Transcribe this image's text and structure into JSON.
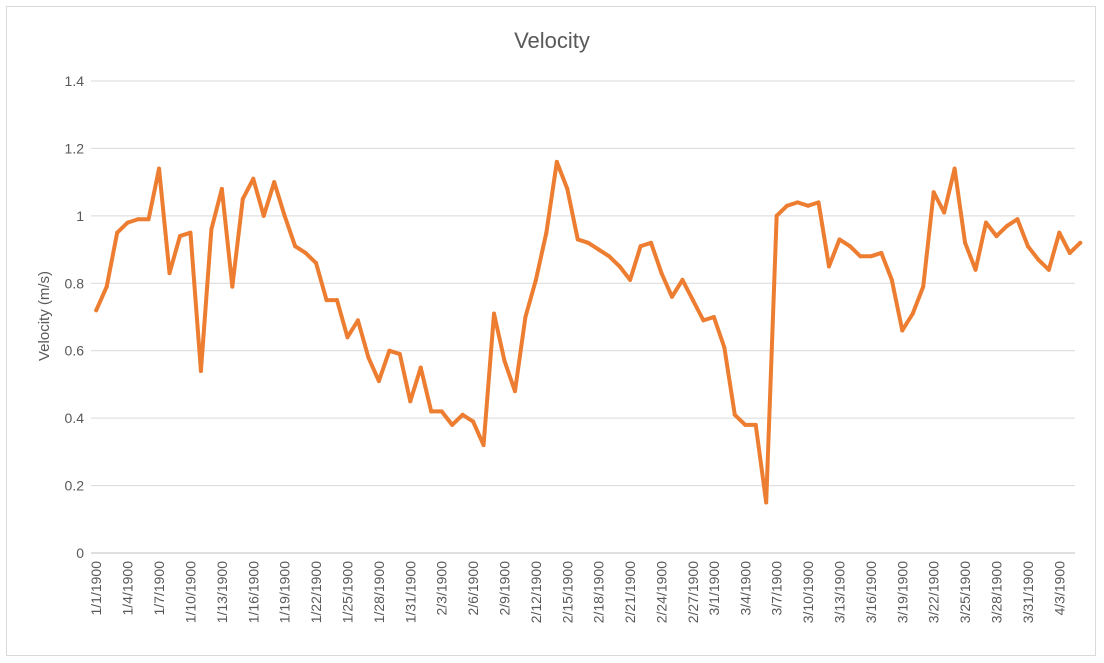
{
  "chart_data": {
    "type": "line",
    "title": "Velocity",
    "xlabel": "",
    "ylabel": "Velocity (m/s)",
    "ylim": [
      0,
      1.4
    ],
    "yticks": [
      "0",
      "0.2",
      "0.4",
      "0.6",
      "0.8",
      "1",
      "1.2",
      "1.4"
    ],
    "grid": true,
    "legend": "none",
    "x_tick_labels": [
      "1/1/1900",
      "1/4/1900",
      "1/7/1900",
      "1/10/1900",
      "1/13/1900",
      "1/16/1900",
      "1/19/1900",
      "1/22/1900",
      "1/25/1900",
      "1/28/1900",
      "1/31/1900",
      "2/3/1900",
      "2/6/1900",
      "2/9/1900",
      "2/12/1900",
      "2/15/1900",
      "2/18/1900",
      "2/21/1900",
      "2/24/1900",
      "2/27/1900",
      "3/1/1900",
      "3/4/1900",
      "3/7/1900",
      "3/10/1900",
      "3/13/1900",
      "3/16/1900",
      "3/19/1900",
      "3/22/1900",
      "3/25/1900",
      "3/28/1900",
      "3/31/1900",
      "4/3/1900"
    ],
    "x_start": "1/1/1900",
    "x_end": "4/4/1900",
    "series": [
      {
        "name": "",
        "color": "#ED7D31",
        "values": [
          0.72,
          0.79,
          0.95,
          0.98,
          0.99,
          0.99,
          1.14,
          0.83,
          0.94,
          0.95,
          0.54,
          0.96,
          1.08,
          0.79,
          1.05,
          1.11,
          1.0,
          1.1,
          1.0,
          0.91,
          0.89,
          0.86,
          0.75,
          0.75,
          0.64,
          0.69,
          0.58,
          0.51,
          0.6,
          0.59,
          0.45,
          0.55,
          0.42,
          0.42,
          0.38,
          0.41,
          0.39,
          0.32,
          0.71,
          0.57,
          0.48,
          0.7,
          0.81,
          0.95,
          1.16,
          1.08,
          0.93,
          0.92,
          0.9,
          0.88,
          0.85,
          0.81,
          0.91,
          0.92,
          0.83,
          0.76,
          0.81,
          0.75,
          0.69,
          0.7,
          0.61,
          0.41,
          0.38,
          0.38,
          0.15,
          1.0,
          1.03,
          1.04,
          1.03,
          1.04,
          0.85,
          0.93,
          0.91,
          0.88,
          0.88,
          0.89,
          0.81,
          0.66,
          0.71,
          0.79,
          1.07,
          1.01,
          1.14,
          0.92,
          0.84,
          0.98,
          0.94,
          0.97,
          0.99,
          0.91,
          0.87,
          0.84,
          0.95,
          0.89,
          0.92
        ]
      }
    ]
  }
}
